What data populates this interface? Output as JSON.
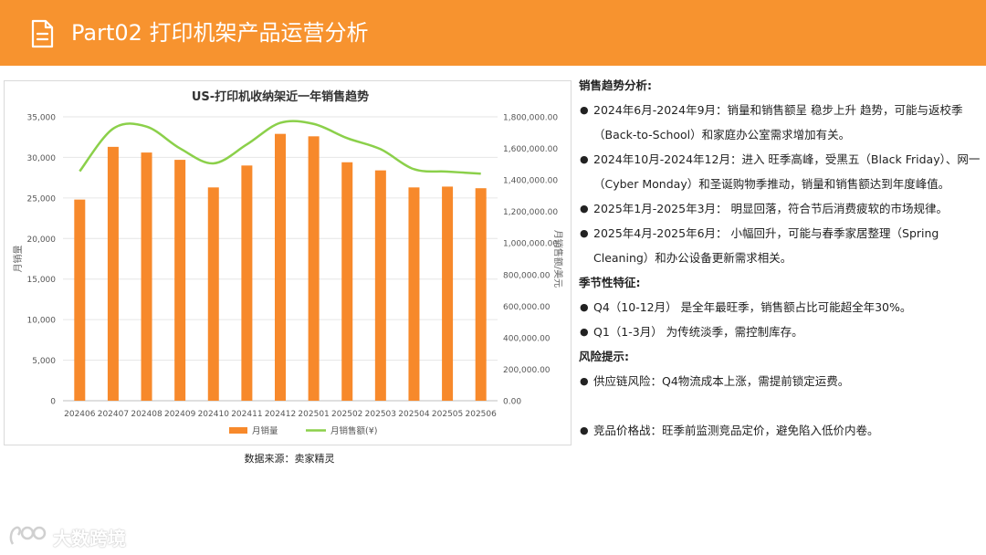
{
  "header": {
    "title": "Part02 打印机架产品运营分析",
    "icon": "document-icon",
    "bg_color": "#f7932f"
  },
  "chart_data": {
    "type": "bar",
    "title": "US-打印机收纳架近一年销售趋势",
    "categories": [
      "202406",
      "202407",
      "202408",
      "202409",
      "202410",
      "202411",
      "202412",
      "202501",
      "202502",
      "202503",
      "202504",
      "202505",
      "202506"
    ],
    "series": [
      {
        "name": "月销量",
        "type": "bar",
        "axis": "left",
        "color": "#f7892b",
        "values": [
          24800,
          31300,
          30600,
          29700,
          26300,
          29000,
          32900,
          32600,
          29400,
          28400,
          26300,
          26400,
          26200
        ]
      },
      {
        "name": "月销售额(¥)",
        "type": "line",
        "axis": "right",
        "color": "#8bd04a",
        "values": [
          1455000,
          1725000,
          1738000,
          1600000,
          1505000,
          1625000,
          1762000,
          1755000,
          1665000,
          1595000,
          1468000,
          1453000,
          1440000
        ]
      }
    ],
    "ylabel": "月销量",
    "y2label": "月销售额/美元",
    "ylim": [
      0,
      35000
    ],
    "y2lim": [
      0,
      1800000
    ],
    "yticks": [
      "0",
      "5,000",
      "10,000",
      "15,000",
      "20,000",
      "25,000",
      "30,000",
      "35,000"
    ],
    "y2ticks": [
      "0.00",
      "200,000.00",
      "400,000.00",
      "600,000.00",
      "800,000.00",
      "1,000,000.00",
      "1,200,000.00",
      "1,400,000.00",
      "1,600,000.00",
      "1,800,000.00"
    ],
    "grid": true,
    "legend": "bottom"
  },
  "source": "数据来源：卖家精灵",
  "analysis": {
    "trend_heading": "销售趋势分析:",
    "trend_items": [
      "2024年6月-2024年9月：销量和销售额呈 稳步上升 趋势，可能与返校季（Back-to-School）和家庭办公室需求增加有关。",
      "2024年10月-2024年12月：进入 旺季高峰，受黑五（Black Friday）、网一（Cyber Monday）和圣诞购物季推动，销量和销售额达到年度峰值。",
      "2025年1月-2025年3月： 明显回落，符合节后消费疲软的市场规律。",
      "2025年4月-2025年6月： 小幅回升，可能与春季家居整理（Spring Cleaning）和办公设备更新需求相关。"
    ],
    "season_heading": "季节性特征:",
    "season_items": [
      "Q4（10-12月） 是全年最旺季，销售额占比可能超全年30%。",
      "Q1（1-3月） 为传统淡季，需控制库存。"
    ],
    "risk_heading": "风险提示:",
    "risk_items": [
      "供应链风险：Q4物流成本上涨，需提前锁定运费。",
      "竞品价格战：旺季前监测竞品定价，避免陷入低价内卷。"
    ]
  },
  "watermark": {
    "text": "大数跨境",
    "icon": "logo-icon"
  }
}
